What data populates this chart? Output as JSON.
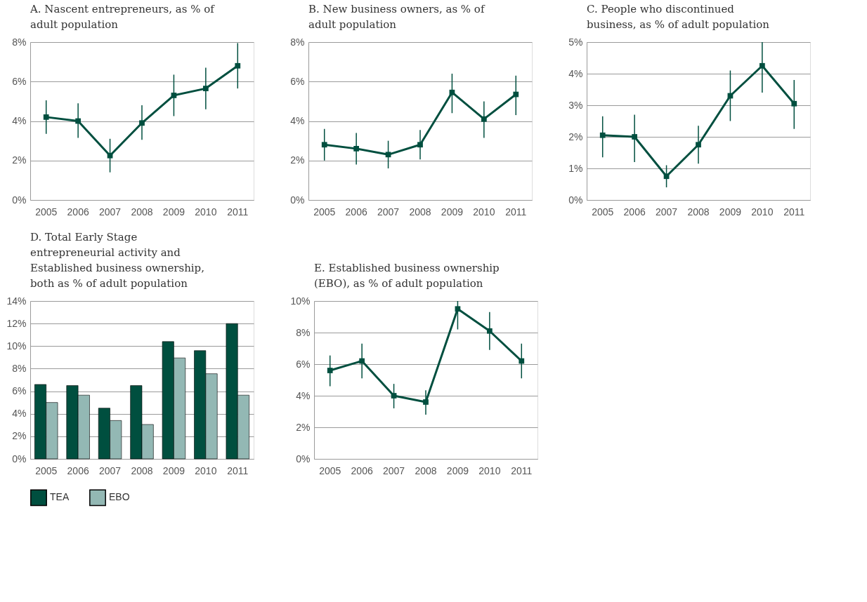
{
  "chart_data": [
    {
      "type": "line",
      "title": "A. Nascent entrepreneurs, as % of adult population",
      "categories": [
        "2005",
        "2006",
        "2007",
        "2008",
        "2009",
        "2010",
        "2011"
      ],
      "series": [
        {
          "color": "#004f3f",
          "values": [
            4.2,
            4.0,
            2.25,
            3.9,
            5.3,
            5.65,
            6.8
          ],
          "errors": [
            [
              3.35,
              5.05
            ],
            [
              3.15,
              4.9
            ],
            [
              1.4,
              3.1
            ],
            [
              3.05,
              4.8
            ],
            [
              4.25,
              6.35
            ],
            [
              4.6,
              6.7
            ],
            [
              5.65,
              7.95
            ]
          ]
        }
      ],
      "ylim": [
        0,
        8
      ],
      "yticks": [
        {
          "value": 0,
          "label": "0%"
        },
        {
          "value": 2,
          "label": "2%"
        },
        {
          "value": 4,
          "label": "4%"
        },
        {
          "value": 6,
          "label": "6%"
        },
        {
          "value": 8,
          "label": "8%"
        }
      ],
      "grid": "y",
      "marker": "square",
      "line_style": "solid"
    },
    {
      "type": "line",
      "title": "B. New business owners, as % of adult population",
      "categories": [
        "2005",
        "2006",
        "2007",
        "2008",
        "2009",
        "2010",
        "2011"
      ],
      "series": [
        {
          "color": "#004f3f",
          "values": [
            2.8,
            2.6,
            2.3,
            2.8,
            5.45,
            4.1,
            5.35
          ],
          "errors": [
            [
              2.0,
              3.6
            ],
            [
              1.8,
              3.4
            ],
            [
              1.6,
              3.0
            ],
            [
              2.05,
              3.55
            ],
            [
              4.4,
              6.4
            ],
            [
              3.15,
              5.0
            ],
            [
              4.3,
              6.3
            ]
          ]
        }
      ],
      "ylim": [
        0,
        8
      ],
      "yticks": [
        {
          "value": 0,
          "label": "0%"
        },
        {
          "value": 2,
          "label": "2%"
        },
        {
          "value": 4,
          "label": "4%"
        },
        {
          "value": 6,
          "label": "6%"
        },
        {
          "value": 8,
          "label": "8%"
        }
      ],
      "grid": "y",
      "marker": "square",
      "line_style": "solid"
    },
    {
      "type": "line",
      "title": "C. People who discontinued business, as % of adult population",
      "categories": [
        "2005",
        "2006",
        "2007",
        "2008",
        "2009",
        "2010",
        "2011"
      ],
      "series": [
        {
          "color": "#004f3f",
          "values": [
            2.05,
            2.0,
            0.75,
            1.75,
            3.3,
            4.25,
            3.05
          ],
          "errors": [
            [
              1.35,
              2.65
            ],
            [
              1.2,
              2.7
            ],
            [
              0.4,
              1.1
            ],
            [
              1.15,
              2.35
            ],
            [
              2.5,
              4.1
            ],
            [
              3.4,
              5.0
            ],
            [
              2.25,
              3.8
            ]
          ]
        }
      ],
      "ylim": [
        0,
        5
      ],
      "yticks": [
        {
          "value": 0,
          "label": "0%"
        },
        {
          "value": 1,
          "label": "1%"
        },
        {
          "value": 2,
          "label": "2%"
        },
        {
          "value": 3,
          "label": "3%"
        },
        {
          "value": 4,
          "label": "4%"
        },
        {
          "value": 5,
          "label": "5%"
        }
      ],
      "grid": "y",
      "marker": "square",
      "line_style": "solid"
    },
    {
      "type": "bar",
      "title": "D. Total Early Stage entrepreneurial activity and Established business ownership, both  as % of adult population",
      "categories": [
        "2005",
        "2006",
        "2007",
        "2008",
        "2009",
        "2010",
        "2011"
      ],
      "series": [
        {
          "name": "TEA",
          "color": "#004f3f",
          "values": [
            6.6,
            6.5,
            4.5,
            6.5,
            10.4,
            9.6,
            12.0
          ]
        },
        {
          "name": "EBO",
          "color": "#93b8b4",
          "values": [
            5.0,
            5.65,
            3.4,
            3.05,
            8.95,
            7.55,
            5.65
          ]
        }
      ],
      "ylim": [
        0,
        14
      ],
      "yticks": [
        {
          "value": 0,
          "label": "0%"
        },
        {
          "value": 2,
          "label": "2%"
        },
        {
          "value": 4,
          "label": "4%"
        },
        {
          "value": 6,
          "label": "6%"
        },
        {
          "value": 8,
          "label": "8%"
        },
        {
          "value": 10,
          "label": "10%"
        },
        {
          "value": 12,
          "label": "12%"
        },
        {
          "value": 14,
          "label": "14%"
        }
      ],
      "grid": "y",
      "legend": "bottom"
    },
    {
      "type": "line",
      "title": "E. Established business ownership (EBO), as % of adult population",
      "categories": [
        "2005",
        "2006",
        "2007",
        "2008",
        "2009",
        "2010",
        "2011"
      ],
      "series": [
        {
          "color": "#004f3f",
          "values": [
            5.6,
            6.2,
            4.0,
            3.6,
            9.5,
            8.1,
            6.2
          ],
          "errors": [
            [
              4.6,
              6.55
            ],
            [
              5.1,
              7.3
            ],
            [
              3.2,
              4.75
            ],
            [
              2.8,
              4.35
            ],
            [
              8.2,
              10.0
            ],
            [
              6.9,
              9.3
            ],
            [
              5.1,
              7.3
            ]
          ]
        }
      ],
      "ylim": [
        0,
        10
      ],
      "yticks": [
        {
          "value": 0,
          "label": "0%"
        },
        {
          "value": 2,
          "label": "2%"
        },
        {
          "value": 4,
          "label": "4%"
        },
        {
          "value": 6,
          "label": "6%"
        },
        {
          "value": 8,
          "label": "8%"
        },
        {
          "value": 10,
          "label": "10%"
        }
      ],
      "grid": "y",
      "marker": "square",
      "line_style": "solid"
    }
  ]
}
